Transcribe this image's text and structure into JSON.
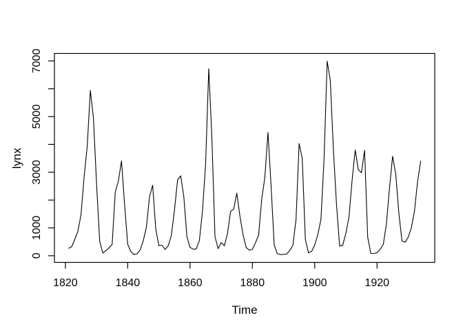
{
  "figure": {
    "background": "#ffffff",
    "foreground": "#000000"
  },
  "chart_data": {
    "type": "line",
    "title": "",
    "xlabel": "Time",
    "ylabel": "lynx",
    "series": [
      {
        "name": "lynx",
        "x_start": 1821,
        "x_end": 1934,
        "x_step": 1,
        "values": [
          269,
          321,
          585,
          871,
          1475,
          2821,
          3928,
          5943,
          4950,
          2577,
          523,
          98,
          184,
          279,
          409,
          2285,
          2685,
          3409,
          1824,
          409,
          151,
          45,
          68,
          213,
          546,
          1033,
          2129,
          2536,
          957,
          361,
          377,
          225,
          360,
          731,
          1638,
          2725,
          2871,
          2119,
          684,
          299,
          236,
          245,
          552,
          1623,
          3311,
          6721,
          4254,
          687,
          255,
          473,
          358,
          784,
          1594,
          1676,
          2251,
          1426,
          756,
          299,
          201,
          229,
          469,
          736,
          2042,
          2811,
          4431,
          2511,
          389,
          73,
          39,
          49,
          59,
          188,
          377,
          1292,
          4031,
          3495,
          587,
          105,
          153,
          387,
          758,
          1307,
          3465,
          6991,
          6313,
          3794,
          1836,
          345,
          382,
          808,
          1388,
          2713,
          3800,
          3091,
          2985,
          3790,
          674,
          81,
          80,
          108,
          229,
          399,
          1132,
          2432,
          3574,
          2935,
          1537,
          529,
          485,
          662,
          1000,
          1590,
          2657,
          3396
        ]
      }
    ],
    "xlim": [
      1816.48,
      1938.52
    ],
    "ylim": [
      -239.08,
      7269.08
    ],
    "x_ticks": [
      1820,
      1840,
      1860,
      1880,
      1900,
      1920
    ],
    "x_tick_labels": [
      "1820",
      "1840",
      "1860",
      "1880",
      "1900",
      "1920"
    ],
    "y_ticks": [
      0,
      1000,
      2000,
      3000,
      4000,
      5000,
      6000,
      7000
    ],
    "y_tick_labels": [
      "0",
      "1000",
      "",
      "3000",
      "",
      "5000",
      "",
      "7000"
    ],
    "grid": false,
    "legend": null,
    "line_color": "#000000",
    "axis_color": "#000000",
    "plot_background": "#ffffff"
  }
}
